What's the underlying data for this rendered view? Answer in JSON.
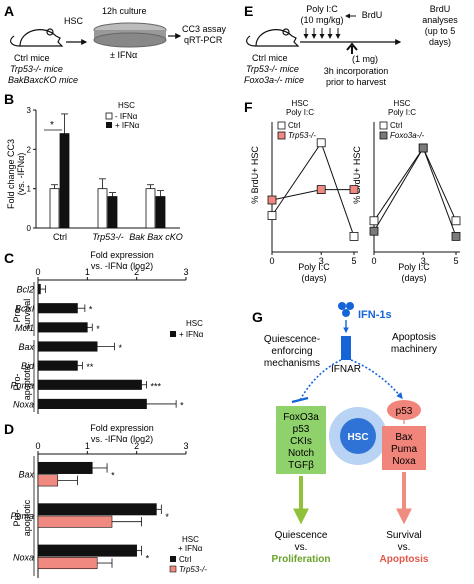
{
  "panels": {
    "A": {
      "letter": "A",
      "hsc": "HSC",
      "culture": "12h culture",
      "treatment": "± IFNα",
      "assays": [
        "CC3 assay",
        "qRT-PCR"
      ],
      "mice": [
        "Ctrl mice",
        "Trp53-/- mice",
        "BakBaxcKO mice"
      ]
    },
    "B": {
      "letter": "B",
      "ylabel": [
        "Fold change CC3",
        "(vs. -IFNα)"
      ],
      "legend_title": "HSC",
      "significance": "*"
    },
    "C": {
      "letter": "C",
      "axis_title": [
        "Fold expression",
        "vs. -IFNα (log2)"
      ],
      "group_survival": [
        "Pro-",
        "survival"
      ],
      "group_apoptotic": [
        "Pro-",
        "apoptotic"
      ],
      "legend_title": "HSC"
    },
    "D": {
      "letter": "D",
      "axis_title": [
        "Fold expression",
        "vs. -IFNα (log2)"
      ],
      "group": [
        "Pro-",
        "apoptotic"
      ],
      "legend_title": [
        "HSC",
        "+ IFNα"
      ]
    },
    "E": {
      "letter": "E",
      "polyic": "Poly I:C",
      "dose": "(10 mg/kg)",
      "brdu": "BrdU",
      "brdu_dose": "(1 mg)",
      "analyses": [
        "BrdU",
        "analyses",
        "(up to 5",
        "days)"
      ],
      "mice": [
        "Ctrl mice",
        "Trp53-/- mice",
        "Foxo3a-/- mice"
      ],
      "incorporation": [
        "3h incorporation",
        "prior to harvest"
      ]
    },
    "F": {
      "letter": "F",
      "title1": [
        "HSC",
        "Poly I:C"
      ],
      "title2": [
        "HSC",
        "Poly I:C"
      ],
      "ylabel": "% BrdU+ HSC",
      "xlabel": [
        "Poly I:C",
        "(days)"
      ]
    },
    "G": {
      "letter": "G",
      "ifn": "IFN-1s",
      "ifnar": "IFNAR",
      "quiescence_mech": [
        "Quiescence-",
        "enforcing",
        "mechanisms"
      ],
      "apoptosis_mach": [
        "Apoptosis",
        "machinery"
      ],
      "green_box": [
        "FoxO3a",
        "p53",
        "CKIs",
        "Notch",
        "TGFβ"
      ],
      "hsc": "HSC",
      "p53": "p53",
      "red_box": [
        "Bax",
        "Puma",
        "Noxa"
      ],
      "outcome_left": [
        "Quiescence",
        "vs.",
        "Proliferation"
      ],
      "outcome_right": [
        "Survival",
        "vs.",
        "Apoptosis"
      ]
    }
  },
  "colors": {
    "black": "#111111",
    "salmon": "#f08a80",
    "grey": "#7a7a7a",
    "green_box": "#8fd16a",
    "green_arrow": "#8fc23a",
    "red_box": "#f2857b",
    "red_arrow": "#ef8c80",
    "blue": "#1565d8",
    "hsc_blue": "#2f73d6"
  },
  "chart_data": [
    {
      "panel": "B",
      "type": "bar",
      "categories": [
        "Ctrl",
        "Trp53-/-",
        "Bak Bax cKO"
      ],
      "series": [
        {
          "name": "- IFNα",
          "values": [
            1.0,
            1.0,
            1.0
          ],
          "errors": [
            0.1,
            0.25,
            0.1
          ]
        },
        {
          "name": "+ IFNα",
          "values": [
            2.4,
            0.8,
            0.8
          ],
          "errors": [
            0.5,
            0.1,
            0.15
          ]
        }
      ],
      "ylabel": "Fold change CC3 (vs. -IFNα)",
      "ylim": [
        0,
        3
      ],
      "yticks": [
        0,
        1,
        2,
        3
      ]
    },
    {
      "panel": "C",
      "type": "bar",
      "orientation": "horizontal",
      "categories": [
        "Bcl2",
        "Bclxl",
        "Mcl1",
        "Bax",
        "Bid",
        "Puma",
        "Noxa"
      ],
      "series": [
        {
          "name": "+ IFNα",
          "values": [
            0.05,
            0.8,
            1.0,
            1.2,
            0.8,
            2.1,
            2.2
          ],
          "errors": [
            0.1,
            0.15,
            0.1,
            0.35,
            0.1,
            0.1,
            0.6
          ]
        }
      ],
      "significance": [
        "",
        "*",
        "*",
        "*",
        "**",
        "***",
        "*"
      ],
      "xlim": [
        0,
        3
      ],
      "xticks": [
        0,
        1,
        2,
        3
      ]
    },
    {
      "panel": "D",
      "type": "bar",
      "orientation": "horizontal",
      "categories": [
        "Bax",
        "Puma",
        "Noxa"
      ],
      "series": [
        {
          "name": "Ctrl",
          "values": [
            1.1,
            2.4,
            2.0
          ],
          "errors": [
            0.3,
            0.1,
            0.1
          ]
        },
        {
          "name": "Trp53-/-",
          "values": [
            0.4,
            1.5,
            1.2
          ],
          "errors": [
            0.4,
            0.6,
            0.3
          ]
        }
      ],
      "significance": [
        "*",
        "*",
        "*"
      ],
      "xlim": [
        0,
        3
      ],
      "xticks": [
        0,
        1,
        2,
        3
      ]
    },
    {
      "panel": "F-left",
      "type": "line",
      "x": [
        0,
        3,
        5
      ],
      "series": [
        {
          "name": "Ctrl",
          "values": [
            7,
            21,
            3
          ]
        },
        {
          "name": "Trp53-/-",
          "values": [
            10,
            12,
            12
          ]
        }
      ],
      "ylabel": "% BrdU+ HSC",
      "xlabel": "Poly I:C (days)",
      "xticks": [
        0,
        3,
        5
      ],
      "ylim": [
        0,
        25
      ]
    },
    {
      "panel": "F-right",
      "type": "line",
      "x": [
        0,
        3,
        5
      ],
      "series": [
        {
          "name": "Ctrl",
          "values": [
            6,
            20,
            6
          ]
        },
        {
          "name": "Foxo3a-/-",
          "values": [
            4,
            20,
            3
          ]
        }
      ],
      "ylabel": "% BrdU+ HSC",
      "xlabel": "Poly I:C (days)",
      "xticks": [
        0,
        3,
        5
      ],
      "ylim": [
        0,
        25
      ]
    }
  ]
}
